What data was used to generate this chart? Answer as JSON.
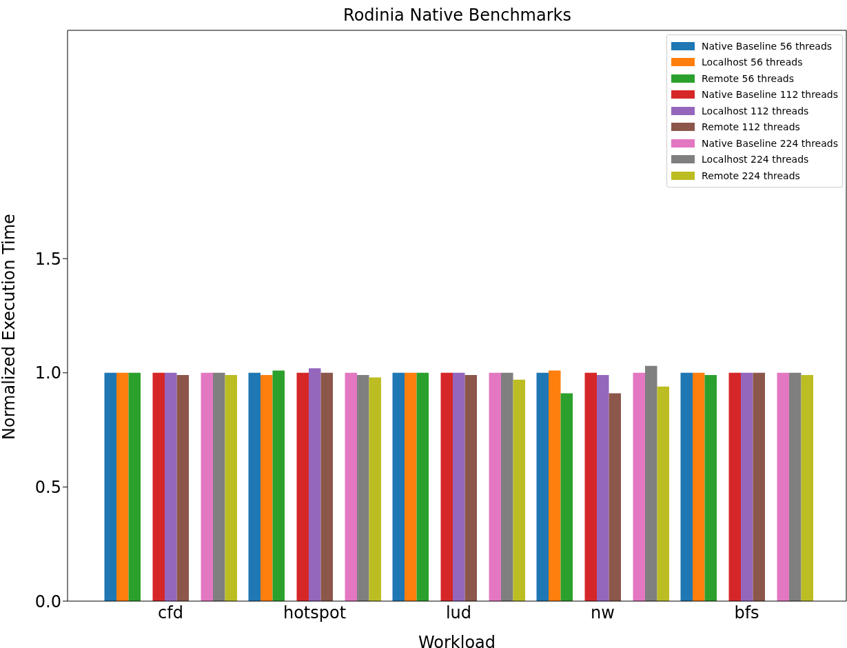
{
  "chart_data": {
    "type": "bar",
    "title": "Rodinia Native Benchmarks",
    "xlabel": "Workload",
    "ylabel": "Normalized Execution Time",
    "categories": [
      "cfd",
      "hotspot",
      "lud",
      "nw",
      "bfs"
    ],
    "series": [
      {
        "name": "Native Baseline 56 threads",
        "color": "#1f77b4",
        "values": [
          1.0,
          1.0,
          1.0,
          1.0,
          1.0
        ]
      },
      {
        "name": "Localhost 56 threads",
        "color": "#ff7f0e",
        "values": [
          1.0,
          0.99,
          1.0,
          1.01,
          1.0
        ]
      },
      {
        "name": "Remote 56 threads",
        "color": "#2ca02c",
        "values": [
          1.0,
          1.01,
          1.0,
          0.91,
          0.99
        ]
      },
      {
        "name": "Native Baseline 112 threads",
        "color": "#d62728",
        "values": [
          1.0,
          1.0,
          1.0,
          1.0,
          1.0
        ]
      },
      {
        "name": "Localhost 112 threads",
        "color": "#9467bd",
        "values": [
          1.0,
          1.02,
          1.0,
          0.99,
          1.0
        ]
      },
      {
        "name": "Remote 112 threads",
        "color": "#8c564b",
        "values": [
          0.99,
          1.0,
          0.99,
          0.91,
          1.0
        ]
      },
      {
        "name": "Native Baseline 224 threads",
        "color": "#e377c2",
        "values": [
          1.0,
          1.0,
          1.0,
          1.0,
          1.0
        ]
      },
      {
        "name": "Localhost 224 threads",
        "color": "#7f7f7f",
        "values": [
          1.0,
          0.99,
          1.0,
          1.03,
          1.0
        ]
      },
      {
        "name": "Remote 224 threads",
        "color": "#bcbd22",
        "values": [
          0.99,
          0.98,
          0.97,
          0.94,
          0.99
        ]
      }
    ],
    "ylim": [
      0,
      2.5
    ],
    "yticks": [
      {
        "value": 0,
        "label": "0.0"
      },
      {
        "value": 0.5,
        "label": "0.5"
      },
      {
        "value": 1,
        "label": "1.0"
      },
      {
        "value": 1.5,
        "label": "1.5"
      }
    ],
    "legend": "top right",
    "grid": false
  }
}
